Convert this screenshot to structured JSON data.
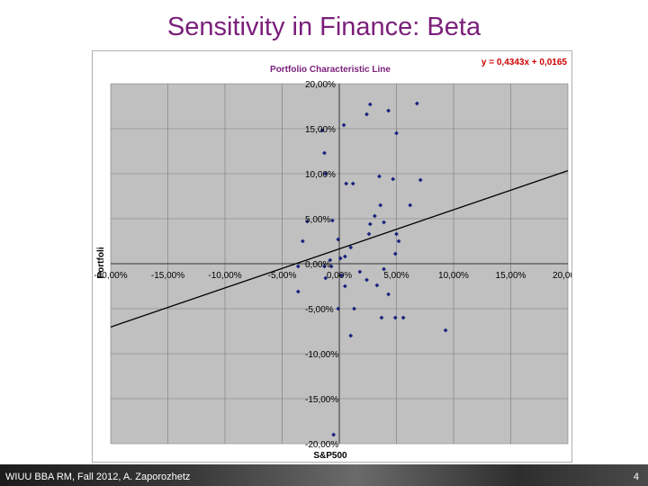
{
  "slide": {
    "title": "Sensitivity in Finance: Beta",
    "footer": "WIUU BBA RM, Fall 2012, A. Zaporozhetz",
    "page_number": "4"
  },
  "chart_data": {
    "type": "scatter",
    "title": "Portfolio Characteristic Line",
    "xlabel": "S&P500",
    "ylabel": "Portfoli",
    "trendline_label": "y = 0,4343x + 0,0165",
    "trendline": {
      "slope": 0.4343,
      "intercept": 0.0165
    },
    "xlim": [
      -0.2,
      0.2
    ],
    "ylim": [
      -0.2,
      0.2
    ],
    "x_ticks": [
      -0.2,
      -0.15,
      -0.1,
      -0.05,
      0.0,
      0.05,
      0.1,
      0.15,
      0.2
    ],
    "x_tick_labels": [
      "-20,00%",
      "-15,00%",
      "-10,00%",
      "-5,00%",
      "0,00%",
      "5,00%",
      "10,00%",
      "15,00%",
      "20,00%"
    ],
    "y_ticks": [
      0.2,
      0.15,
      0.1,
      0.05,
      0.0,
      -0.05,
      -0.1,
      -0.15,
      -0.2
    ],
    "y_tick_labels": [
      "20,00%",
      "15,00%",
      "10,00%",
      "5,00%",
      "0,00%",
      "-5,00%",
      "-10,00%",
      "-15,00%",
      "-20,00%"
    ],
    "grid": true,
    "colors": {
      "plot_bg": "#c0c0c0",
      "point": "#1a237e",
      "trendline": "#000000",
      "grid": "#777777",
      "title": "#7a1f7a",
      "equation": "#cc0000"
    },
    "x": [
      0.027,
      0.024,
      0.004,
      0.043,
      0.05,
      -0.015,
      -0.013,
      0.068,
      0.071,
      -0.012,
      0.012,
      0.006,
      0.047,
      0.035,
      0.036,
      0.039,
      0.062,
      -0.006,
      -0.032,
      -0.001,
      -0.028,
      0.026,
      0.027,
      0.031,
      0.05,
      0.01,
      0.005,
      0.052,
      0.049,
      -0.008,
      0.039,
      -0.007,
      0.001,
      -0.013,
      -0.036,
      0.018,
      0.024,
      0.002,
      -0.012,
      -0.036,
      0.005,
      0.033,
      0.013,
      0.043,
      -0.001,
      0.056,
      0.049,
      0.037,
      0.093,
      0.01,
      -0.005
    ],
    "y": [
      0.177,
      0.166,
      0.154,
      0.17,
      0.145,
      0.148,
      0.123,
      0.178,
      0.093,
      0.1,
      0.089,
      0.089,
      0.094,
      0.097,
      0.065,
      0.046,
      0.065,
      0.048,
      0.025,
      0.027,
      0.047,
      0.033,
      0.044,
      0.053,
      0.033,
      0.018,
      0.008,
      0.025,
      0.011,
      0.004,
      -0.006,
      -0.003,
      0.006,
      -0.003,
      -0.003,
      -0.009,
      -0.018,
      -0.013,
      -0.016,
      -0.031,
      -0.025,
      -0.024,
      -0.05,
      -0.034,
      -0.05,
      -0.06,
      -0.06,
      -0.06,
      -0.074,
      -0.08,
      -0.19
    ]
  }
}
